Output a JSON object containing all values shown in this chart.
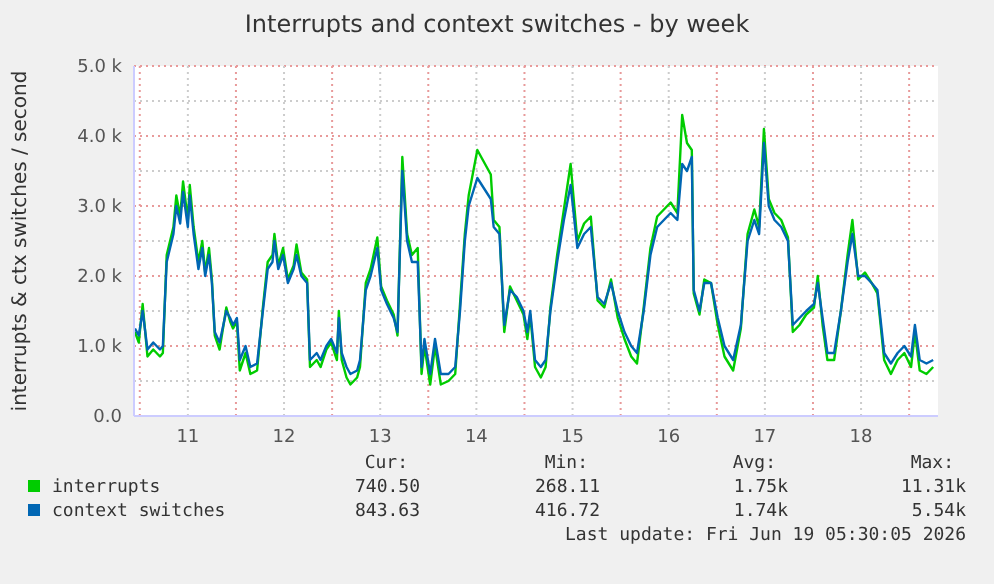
{
  "chart_data": {
    "type": "line",
    "title": "Interrupts and context switches - by week",
    "ylabel": "interrupts & ctx switches / second",
    "xlim": [
      10.94,
      19.3
    ],
    "ylim": [
      0,
      5000
    ],
    "xticks": [
      {
        "value": 11,
        "label": null
      },
      {
        "value": 11.5,
        "label": "11"
      },
      {
        "value": 12,
        "label": null
      },
      {
        "value": 12.5,
        "label": "12"
      },
      {
        "value": 13,
        "label": null
      },
      {
        "value": 13.5,
        "label": "13"
      },
      {
        "value": 14,
        "label": null
      },
      {
        "value": 14.5,
        "label": "14"
      },
      {
        "value": 15,
        "label": null
      },
      {
        "value": 15.5,
        "label": "15"
      },
      {
        "value": 16,
        "label": null
      },
      {
        "value": 16.5,
        "label": "16"
      },
      {
        "value": 17,
        "label": null
      },
      {
        "value": 17.5,
        "label": "17"
      },
      {
        "value": 18,
        "label": null
      },
      {
        "value": 18.5,
        "label": "18"
      },
      {
        "value": 19,
        "label": null
      }
    ],
    "yticks": [
      {
        "value": 0,
        "label": "0.0"
      },
      {
        "value": 500,
        "label": null
      },
      {
        "value": 1000,
        "label": "1.0 k"
      },
      {
        "value": 1500,
        "label": null
      },
      {
        "value": 2000,
        "label": "2.0 k"
      },
      {
        "value": 2500,
        "label": null
      },
      {
        "value": 3000,
        "label": "3.0 k"
      },
      {
        "value": 3500,
        "label": null
      },
      {
        "value": 4000,
        "label": "4.0 k"
      },
      {
        "value": 4500,
        "label": null
      },
      {
        "value": 5000,
        "label": "5.0 k"
      }
    ],
    "grid": true,
    "legend": "bottom",
    "line_style": "solid",
    "marker": "none",
    "x": [
      10.95,
      10.99,
      11.03,
      11.08,
      11.14,
      11.21,
      11.24,
      11.28,
      11.35,
      11.38,
      11.42,
      11.45,
      11.5,
      11.52,
      11.56,
      11.61,
      11.65,
      11.68,
      11.72,
      11.75,
      11.78,
      11.83,
      11.9,
      11.94,
      11.97,
      12.01,
      12.04,
      12.1,
      12.15,
      12.22,
      12.28,
      12.33,
      12.38,
      12.4,
      12.44,
      12.49,
      12.54,
      12.6,
      12.63,
      12.68,
      12.74,
      12.77,
      12.84,
      12.88,
      12.94,
      12.99,
      13.05,
      13.07,
      13.1,
      13.15,
      13.19,
      13.26,
      13.29,
      13.35,
      13.4,
      13.47,
      13.51,
      13.57,
      13.64,
      13.68,
      13.73,
      13.78,
      13.83,
      13.89,
      13.93,
      13.96,
      14.02,
      14.07,
      14.13,
      14.21,
      14.28,
      14.33,
      14.38,
      14.42,
      14.51,
      14.65,
      14.68,
      14.74,
      14.79,
      14.85,
      14.92,
      14.99,
      15.03,
      15.06,
      15.11,
      15.17,
      15.22,
      15.27,
      15.34,
      15.41,
      15.48,
      15.55,
      15.62,
      15.69,
      15.76,
      15.83,
      15.9,
      15.97,
      16.04,
      16.11,
      16.17,
      16.24,
      16.31,
      16.38,
      16.45,
      16.52,
      16.59,
      16.64,
      16.69,
      16.74,
      16.76,
      16.82,
      16.87,
      16.94,
      17.01,
      17.08,
      17.17,
      17.25,
      17.32,
      17.39,
      17.44,
      17.49,
      17.54,
      17.6,
      17.67,
      17.74,
      17.79,
      17.86,
      17.93,
      18.01,
      18.05,
      18.1,
      18.15,
      18.22,
      18.29,
      18.36,
      18.41,
      18.47,
      18.54,
      18.61,
      18.67,
      18.74,
      18.81,
      18.88,
      18.95,
      19.02,
      19.06,
      19.11,
      19.18,
      19.25
    ],
    "series": [
      {
        "name": "interrupts",
        "color": "#00cc00",
        "values": [
          1200,
          1050,
          1600,
          850,
          950,
          850,
          900,
          2300,
          2700,
          3150,
          2850,
          3350,
          2800,
          3300,
          2700,
          2200,
          2500,
          2050,
          2400,
          1950,
          1150,
          950,
          1550,
          1350,
          1250,
          1350,
          650,
          900,
          600,
          650,
          1550,
          2200,
          2300,
          2600,
          2150,
          2400,
          1950,
          2150,
          2450,
          2050,
          1950,
          700,
          800,
          700,
          950,
          1050,
          800,
          1500,
          800,
          550,
          450,
          550,
          700,
          1900,
          2100,
          2550,
          1850,
          1650,
          1450,
          1150,
          3700,
          2600,
          2300,
          2400,
          600,
          1000,
          450,
          1000,
          450,
          500,
          600,
          1600,
          2600,
          3150,
          3800,
          3450,
          2800,
          2700,
          1200,
          1850,
          1650,
          1450,
          1100,
          1450,
          700,
          550,
          700,
          1550,
          2300,
          2950,
          3600,
          2500,
          2750,
          2850,
          1650,
          1550,
          1950,
          1400,
          1100,
          850,
          750,
          1550,
          2400,
          2850,
          2950,
          3050,
          2900,
          4300,
          3900,
          3800,
          1750,
          1450,
          1950,
          1900,
          1300,
          850,
          650,
          1250,
          2600,
          2950,
          2700,
          4100,
          3100,
          2900,
          2800,
          2550,
          1200,
          1300,
          1450,
          1550,
          2000,
          1300,
          800,
          800,
          1500,
          2300,
          2800,
          1950,
          2050,
          1900,
          1750,
          800,
          600,
          800,
          900,
          700,
          1200,
          650,
          600,
          700
        ]
      },
      {
        "name": "context switches",
        "color": "#0066b3",
        "values": [
          1250,
          1150,
          1500,
          950,
          1050,
          950,
          1000,
          2200,
          2600,
          3000,
          2750,
          3200,
          2700,
          3150,
          2600,
          2100,
          2400,
          2000,
          2300,
          1900,
          1200,
          1050,
          1500,
          1400,
          1300,
          1400,
          800,
          1000,
          700,
          750,
          1500,
          2100,
          2200,
          2500,
          2100,
          2300,
          1900,
          2100,
          2300,
          2000,
          1900,
          800,
          900,
          800,
          1000,
          1100,
          900,
          1400,
          900,
          700,
          600,
          650,
          800,
          1800,
          2000,
          2400,
          1800,
          1600,
          1400,
          1200,
          3500,
          2500,
          2200,
          2200,
          700,
          1100,
          600,
          1100,
          600,
          600,
          700,
          1500,
          2500,
          3000,
          3400,
          3100,
          2700,
          2600,
          1300,
          1800,
          1700,
          1500,
          1200,
          1500,
          800,
          700,
          800,
          1500,
          2200,
          2800,
          3300,
          2400,
          2600,
          2700,
          1700,
          1600,
          1900,
          1500,
          1200,
          1000,
          900,
          1500,
          2300,
          2700,
          2800,
          2900,
          2800,
          3600,
          3500,
          3700,
          1800,
          1500,
          1900,
          1900,
          1400,
          1000,
          800,
          1300,
          2500,
          2800,
          2600,
          3900,
          3000,
          2800,
          2700,
          2500,
          1300,
          1400,
          1500,
          1600,
          1900,
          1400,
          900,
          900,
          1500,
          2200,
          2600,
          2000,
          2000,
          1900,
          1800,
          900,
          750,
          900,
          1000,
          850,
          1300,
          800,
          750,
          800
        ]
      }
    ],
    "annotations": [
      "Cur:",
      "Min:",
      "Avg:",
      "Max:",
      "740.50",
      "268.11",
      "1.75k",
      "11.31k",
      "843.63",
      "416.72",
      "1.74k",
      "5.54k",
      "Last update: Fri Jun 19 05:30:05 2026"
    ]
  }
}
